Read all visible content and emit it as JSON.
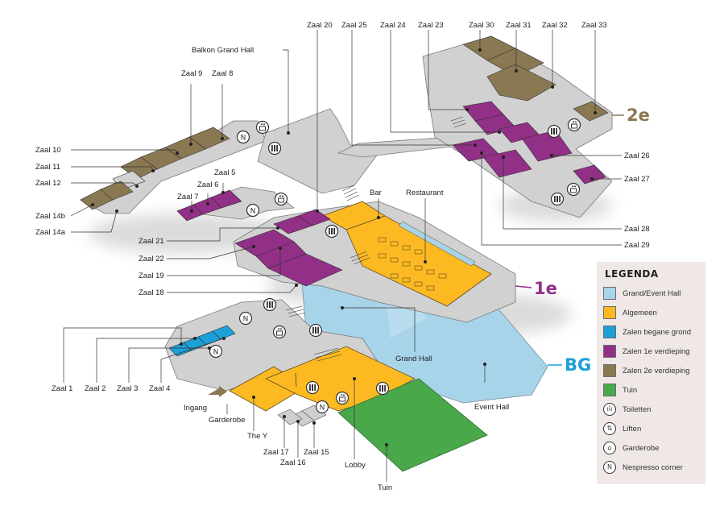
{
  "colors": {
    "grand_event": "#a8d4ea",
    "algemeen": "#fcb922",
    "begane": "#1ba0d8",
    "eerste": "#922f87",
    "tweede": "#8a7852",
    "tuin": "#49a84a",
    "floor_grey": "#d1d1d1",
    "floor_dark": "#a5a5a5"
  },
  "floors": {
    "bg": {
      "label": "BG",
      "color": "#1ba0d8"
    },
    "first": {
      "label": "1e",
      "color": "#922f87"
    },
    "second": {
      "label": "2e",
      "color": "#8a7852"
    }
  },
  "labels": {
    "zaal_1": "Zaal 1",
    "zaal_2": "Zaal 2",
    "zaal_3": "Zaal 3",
    "zaal_4": "Zaal 4",
    "zaal_5": "Zaal 5",
    "zaal_6": "Zaal 6",
    "zaal_7": "Zaal 7",
    "zaal_8": "Zaal 8",
    "zaal_9": "Zaal 9",
    "zaal_10": "Zaal 10",
    "zaal_11": "Zaal 11",
    "zaal_12": "Zaal 12",
    "zaal_14a": "Zaal 14a",
    "zaal_14b": "Zaal 14b",
    "zaal_15": "Zaal 15",
    "zaal_16": "Zaal 16",
    "zaal_17": "Zaal 17",
    "zaal_18": "Zaal 18",
    "zaal_19": "Zaal 19",
    "zaal_20": "Zaal 20",
    "zaal_21": "Zaal 21",
    "zaal_22": "Zaal 22",
    "zaal_23": "Zaal 23",
    "zaal_24": "Zaal 24",
    "zaal_25": "Zaal 25",
    "zaal_26": "Zaal 26",
    "zaal_27": "Zaal 27",
    "zaal_28": "Zaal 28",
    "zaal_29": "Zaal 29",
    "zaal_30": "Zaal 30",
    "zaal_31": "Zaal 31",
    "zaal_32": "Zaal 32",
    "zaal_33": "Zaal 33",
    "balkon": "Balkon Grand Hall",
    "bar": "Bar",
    "restaurant": "Restaurant",
    "grand_hall": "Grand Hall",
    "event_hall": "Event Hall",
    "ingang": "Ingang",
    "garderobe": "Garderobe",
    "the_y": "The Y",
    "lobby": "Lobby",
    "tuin": "Tuin"
  },
  "legend": {
    "title": "LEGENDA",
    "items": [
      {
        "label": "Grand/Event Hall",
        "color": "#a8d4ea"
      },
      {
        "label": "Algemeen",
        "color": "#fcb922"
      },
      {
        "label": "Zalen begane grond",
        "color": "#1ba0d8"
      },
      {
        "label": "Zalen 1e verdieping",
        "color": "#922f87"
      },
      {
        "label": "Zalen 2e verdieping",
        "color": "#8a7852"
      },
      {
        "label": "Tuin",
        "color": "#49a84a"
      },
      {
        "label": "Toiletten",
        "icon": "toilet-icon",
        "glyph": "ıȋı"
      },
      {
        "label": "Liften",
        "icon": "elevator-icon",
        "glyph": "⇅"
      },
      {
        "label": "Garderobe",
        "icon": "hanger-icon",
        "glyph": "⌂"
      },
      {
        "label": "Nespresso corner",
        "icon": "nespresso-icon",
        "glyph": "N"
      }
    ]
  }
}
